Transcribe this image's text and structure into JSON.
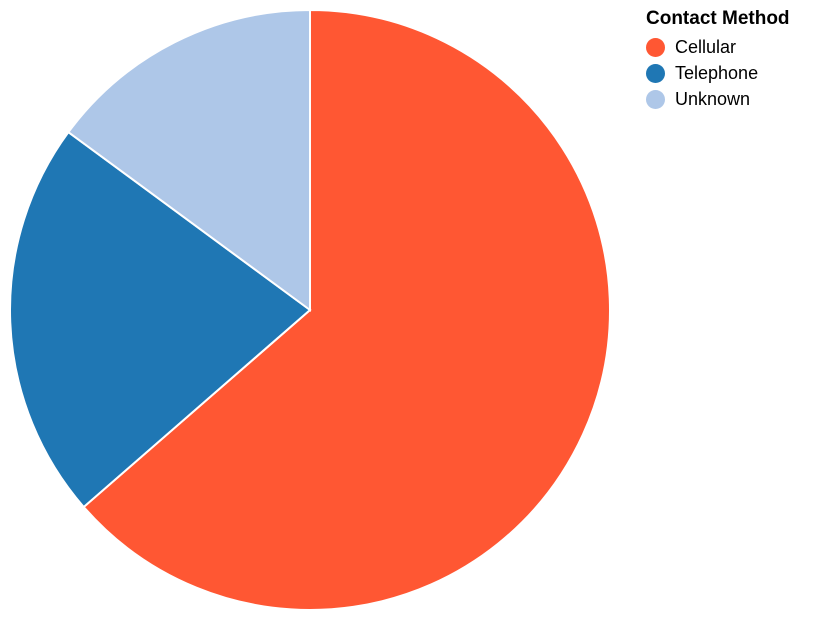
{
  "chart_data": {
    "type": "pie",
    "legend_title": "Contact Method",
    "legend_position": "top-right",
    "categories": [
      "Cellular",
      "Telephone",
      "Unknown"
    ],
    "values": [
      63.6,
      21.5,
      14.9
    ],
    "colors": [
      "#ff5733",
      "#1f77b4",
      "#aec7e8"
    ]
  }
}
